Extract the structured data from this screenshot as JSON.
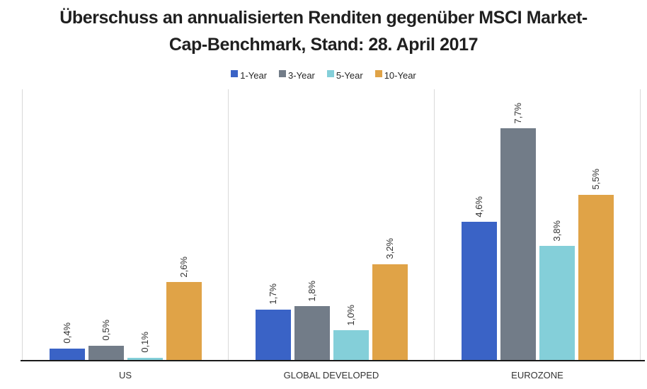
{
  "title": {
    "full": "Überschuss an annualisierten Renditen gegenüber MSCI Market-Cap-Benchmark, Stand: 28. April 2017",
    "line1": "Überschuss an annualisierten Renditen gegenüber MSCI Market-",
    "line2": "Cap-Benchmark, Stand: 28. April 2017"
  },
  "chart_data": {
    "type": "bar",
    "title": "Überschuss an annualisierten Renditen gegenüber MSCI Market-Cap-Benchmark, Stand: 28. April 2017",
    "categories": [
      "US",
      "GLOBAL DEVELOPED",
      "EUROZONE"
    ],
    "series": [
      {
        "name": "1-Year",
        "color": "#3a63c6",
        "values": [
          0.4,
          1.7,
          4.6
        ],
        "labels": [
          "0,4%",
          "1,7%",
          "4,6%"
        ]
      },
      {
        "name": "3-Year",
        "color": "#727c88",
        "values": [
          0.5,
          1.8,
          7.7
        ],
        "labels": [
          "0,5%",
          "1,8%",
          "7,7%"
        ]
      },
      {
        "name": "5-Year",
        "color": "#84cfd9",
        "values": [
          0.1,
          1.0,
          3.8
        ],
        "labels": [
          "0,1%",
          "1,0%",
          "3,8%"
        ]
      },
      {
        "name": "10-Year",
        "color": "#e0a347",
        "values": [
          2.6,
          3.2,
          5.5
        ],
        "labels": [
          "2,6%",
          "3,2%",
          "5,5%"
        ]
      }
    ],
    "value_unit": "%",
    "decimal_separator": ",",
    "value_label_rotation": -90,
    "ylim": [
      0,
      9
    ],
    "y_axis_visible": false,
    "grid": "vertical-category-dividers",
    "divider_color": "#d9d9d9",
    "axis_line_color": "#1a1a1a",
    "legend_position": "top-center"
  }
}
